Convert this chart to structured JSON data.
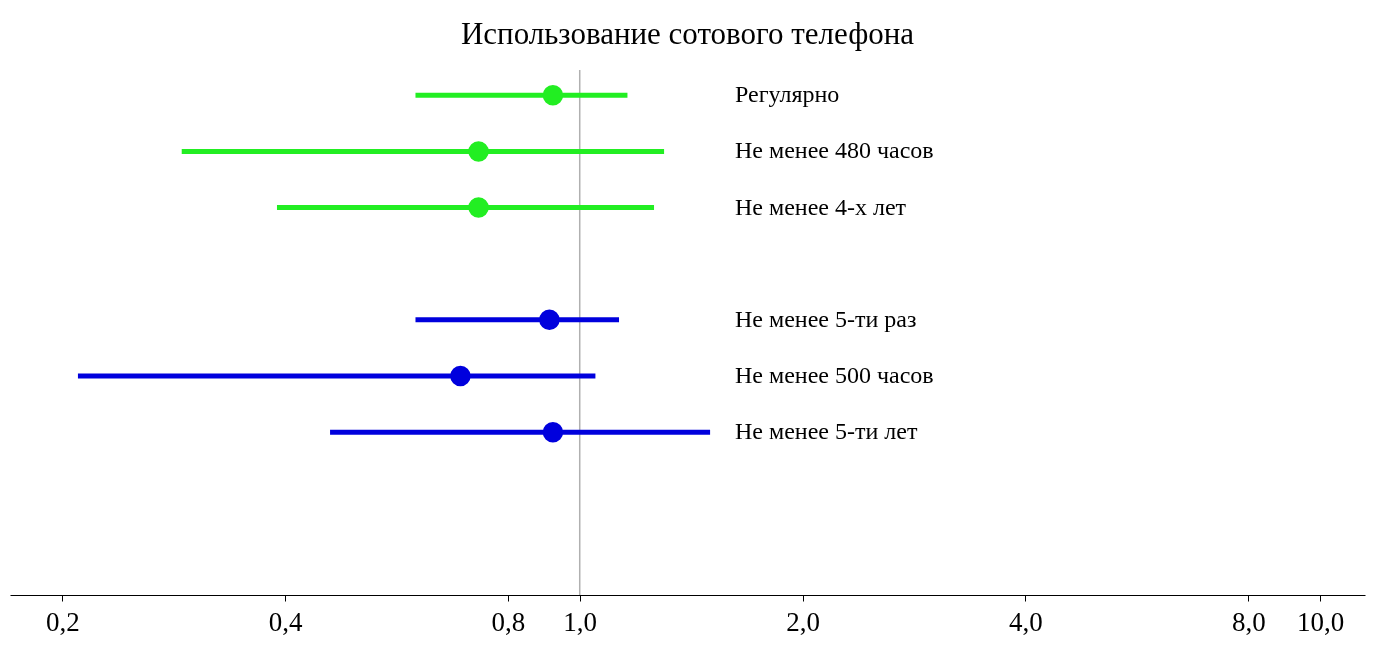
{
  "chart_data": {
    "type": "scatter",
    "orientation": "horizontal",
    "title": "Использование сотового телефона",
    "categories": [
      "Регулярно",
      "Не менее 480 часов",
      "Не менее 4-х лет",
      null,
      "Не менее 5-ти раз",
      "Не менее 500 часов",
      "Не менее 5-ти лет"
    ],
    "series": [
      {
        "color": "#22ee22",
        "values": [
          0.92,
          0.73,
          0.73,
          null,
          null,
          null,
          null
        ],
        "errors": [
          [
            0.6,
            1.16
          ],
          [
            0.29,
            1.3
          ],
          [
            0.39,
            1.26
          ],
          null,
          null,
          null,
          null
        ]
      },
      {
        "color": "#0000dd",
        "values": [
          null,
          null,
          null,
          null,
          0.91,
          0.69,
          0.92
        ],
        "errors": [
          null,
          null,
          null,
          null,
          [
            0.6,
            1.13
          ],
          [
            0.21,
            1.05
          ],
          [
            0.46,
            1.5
          ]
        ]
      }
    ],
    "log": "x",
    "xlim": [
      0.17,
      11.5
    ],
    "xticks": [
      {
        "value": 0.2,
        "label": "0,2"
      },
      {
        "value": 0.4,
        "label": "0,4"
      },
      {
        "value": 0.8,
        "label": "0,8"
      },
      {
        "value": 1,
        "label": "1,0"
      },
      {
        "value": 2,
        "label": "2,0"
      },
      {
        "value": 4,
        "label": "4,0"
      },
      {
        "value": 8,
        "label": "8,0"
      },
      {
        "value": 10,
        "label": "10,0"
      }
    ],
    "ref_lines": [
      {
        "axis": "x",
        "value": 1,
        "color": "#b0b0b0"
      }
    ],
    "marker": "circle",
    "grid": false,
    "legend": false
  }
}
